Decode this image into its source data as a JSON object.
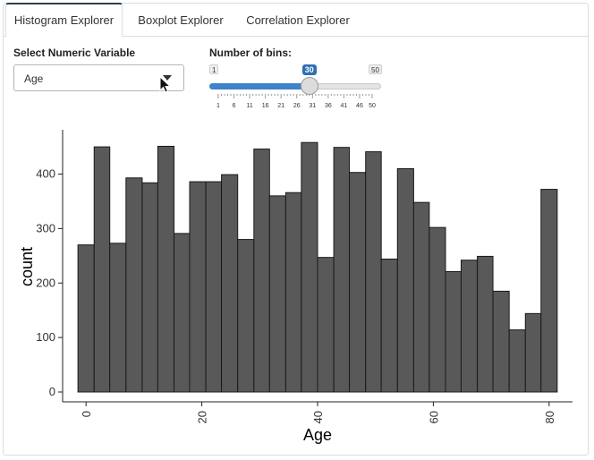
{
  "tabs": [
    {
      "label": "Histogram Explorer",
      "active": true
    },
    {
      "label": "Boxplot Explorer",
      "active": false
    },
    {
      "label": "Correlation Explorer",
      "active": false
    }
  ],
  "variable_select": {
    "label": "Select Numeric Variable",
    "value": "Age",
    "icon": "chevron-down-icon"
  },
  "bins_slider": {
    "label": "Number of bins:",
    "min": 1,
    "max": 50,
    "value": 30,
    "min_label": "1",
    "max_label": "50",
    "value_label": "30",
    "tick_labels": [
      "1",
      "6",
      "11",
      "16",
      "21",
      "26",
      "31",
      "36",
      "41",
      "46",
      "50"
    ],
    "accent_color": "#3f83c9"
  },
  "chart_data": {
    "type": "bar",
    "histogram": true,
    "title": "",
    "xlabel": "Age",
    "ylabel": "count",
    "xlim": [
      -2.5,
      82.5
    ],
    "ylim": [
      0,
      460
    ],
    "x_ticks": [
      "0",
      "20",
      "40",
      "60",
      "80"
    ],
    "y_ticks": [
      "0",
      "100",
      "200",
      "300",
      "400"
    ],
    "bar_color": "#595959",
    "bins": [
      {
        "x0": -1.4,
        "x1": 1.4,
        "count": 270
      },
      {
        "x0": 1.4,
        "x1": 4.1,
        "count": 450
      },
      {
        "x0": 4.1,
        "x1": 6.9,
        "count": 273
      },
      {
        "x0": 6.9,
        "x1": 9.7,
        "count": 393
      },
      {
        "x0": 9.7,
        "x1": 12.4,
        "count": 384
      },
      {
        "x0": 12.4,
        "x1": 15.2,
        "count": 451
      },
      {
        "x0": 15.2,
        "x1": 17.9,
        "count": 291
      },
      {
        "x0": 17.9,
        "x1": 20.7,
        "count": 386
      },
      {
        "x0": 20.7,
        "x1": 23.4,
        "count": 386
      },
      {
        "x0": 23.4,
        "x1": 26.2,
        "count": 399
      },
      {
        "x0": 26.2,
        "x1": 29.0,
        "count": 280
      },
      {
        "x0": 29.0,
        "x1": 31.7,
        "count": 446
      },
      {
        "x0": 31.7,
        "x1": 34.5,
        "count": 360
      },
      {
        "x0": 34.5,
        "x1": 37.2,
        "count": 366
      },
      {
        "x0": 37.2,
        "x1": 40.0,
        "count": 458
      },
      {
        "x0": 40.0,
        "x1": 42.8,
        "count": 247
      },
      {
        "x0": 42.8,
        "x1": 45.5,
        "count": 449
      },
      {
        "x0": 45.5,
        "x1": 48.3,
        "count": 403
      },
      {
        "x0": 48.3,
        "x1": 51.0,
        "count": 441
      },
      {
        "x0": 51.0,
        "x1": 53.8,
        "count": 244
      },
      {
        "x0": 53.8,
        "x1": 56.6,
        "count": 410
      },
      {
        "x0": 56.6,
        "x1": 59.3,
        "count": 348
      },
      {
        "x0": 59.3,
        "x1": 62.1,
        "count": 302
      },
      {
        "x0": 62.1,
        "x1": 64.8,
        "count": 221
      },
      {
        "x0": 64.8,
        "x1": 67.6,
        "count": 242
      },
      {
        "x0": 67.6,
        "x1": 70.3,
        "count": 249
      },
      {
        "x0": 70.3,
        "x1": 73.1,
        "count": 185
      },
      {
        "x0": 73.1,
        "x1": 75.9,
        "count": 114
      },
      {
        "x0": 75.9,
        "x1": 78.6,
        "count": 144
      },
      {
        "x0": 78.6,
        "x1": 81.4,
        "count": 372
      }
    ]
  }
}
